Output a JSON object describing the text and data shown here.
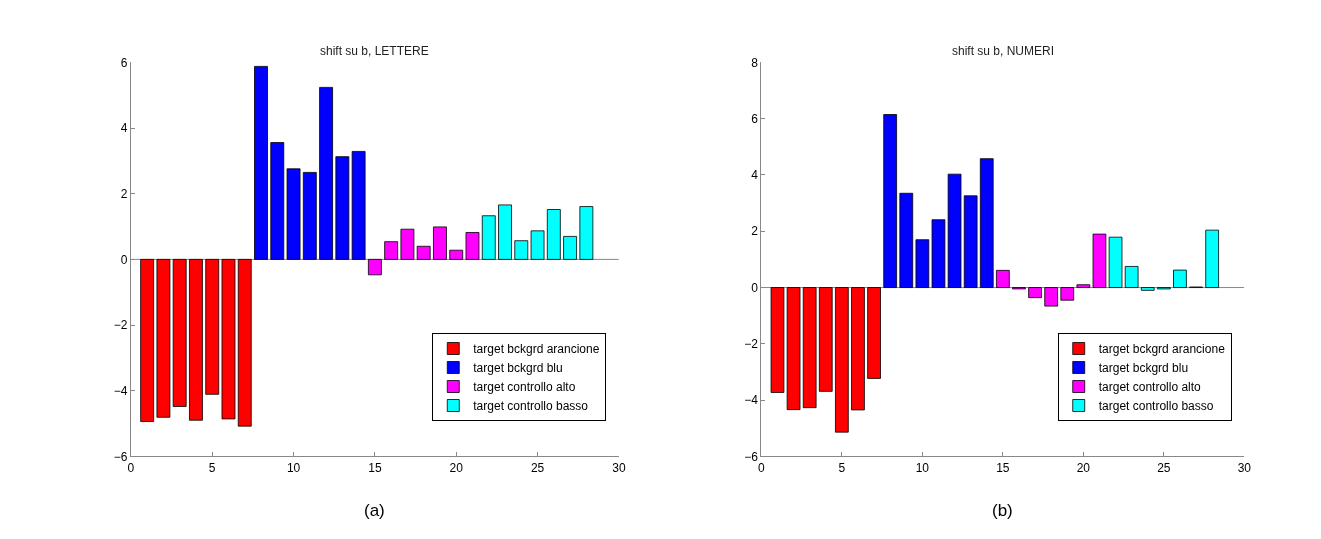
{
  "chart_data": [
    {
      "type": "bar",
      "title": "shift su b, LETTERE",
      "xlim": [
        0,
        30
      ],
      "xticks": [
        0,
        5,
        10,
        15,
        20,
        25,
        30
      ],
      "ylim": [
        -6,
        6
      ],
      "yticks": [
        -6,
        -4,
        -2,
        0,
        2,
        4,
        6
      ],
      "grid": false,
      "ref_lines": [
        {
          "axis": "y",
          "value": 0
        }
      ],
      "legend": "bottom right",
      "annotations": [
        "(a)"
      ],
      "series": [
        {
          "name": "target bckgrd arancione",
          "color": "#ff0000",
          "x": [
            1,
            2,
            3,
            4,
            5,
            6,
            7
          ],
          "values": [
            -4.94,
            -4.81,
            -4.48,
            -4.9,
            -4.11,
            -4.86,
            -5.08
          ]
        },
        {
          "name": "target bckgrd blu",
          "color": "#0000ff",
          "x": [
            8,
            9,
            10,
            11,
            12,
            13,
            14
          ],
          "values": [
            5.88,
            3.56,
            2.76,
            2.65,
            5.24,
            3.13,
            3.29
          ]
        },
        {
          "name": "target controllo alto",
          "color": "#ff00ff",
          "x": [
            15,
            16,
            17,
            18,
            19,
            20,
            21
          ],
          "values": [
            -0.47,
            0.54,
            0.92,
            0.4,
            0.99,
            0.28,
            0.82
          ]
        },
        {
          "name": "target controllo basso",
          "color": "#00ffff",
          "x": [
            22,
            23,
            24,
            25,
            26,
            27,
            28
          ],
          "values": [
            1.33,
            1.66,
            0.57,
            0.87,
            1.52,
            0.7,
            1.61
          ]
        }
      ]
    },
    {
      "type": "bar",
      "title": "shift su b, NUMERI",
      "xlim": [
        0,
        30
      ],
      "xticks": [
        0,
        5,
        10,
        15,
        20,
        25,
        30
      ],
      "ylim": [
        -6,
        8
      ],
      "yticks": [
        -6,
        -4,
        -2,
        0,
        2,
        4,
        6,
        8
      ],
      "grid": false,
      "ref_lines": [
        {
          "axis": "y",
          "value": 0
        }
      ],
      "legend": "bottom right",
      "annotations": [
        "(b)"
      ],
      "series": [
        {
          "name": "target bckgrd arancione",
          "color": "#ff0000",
          "x": [
            1,
            2,
            3,
            4,
            5,
            6,
            7
          ],
          "values": [
            -3.73,
            -4.34,
            -4.27,
            -3.69,
            -5.14,
            -4.35,
            -3.23
          ]
        },
        {
          "name": "target bckgrd blu",
          "color": "#0000ff",
          "x": [
            8,
            9,
            10,
            11,
            12,
            13,
            14
          ],
          "values": [
            6.15,
            3.35,
            1.7,
            2.41,
            4.03,
            3.26,
            4.58
          ]
        },
        {
          "name": "target controllo alto",
          "color": "#ff00ff",
          "x": [
            15,
            16,
            17,
            18,
            19,
            20,
            21
          ],
          "values": [
            0.61,
            -0.05,
            -0.36,
            -0.66,
            -0.45,
            0.1,
            1.9
          ]
        },
        {
          "name": "target controllo basso",
          "color": "#00ffff",
          "x": [
            22,
            23,
            24,
            25,
            26,
            27,
            28
          ],
          "values": [
            1.79,
            0.75,
            -0.1,
            -0.05,
            0.62,
            0.02,
            2.04
          ]
        }
      ]
    }
  ]
}
